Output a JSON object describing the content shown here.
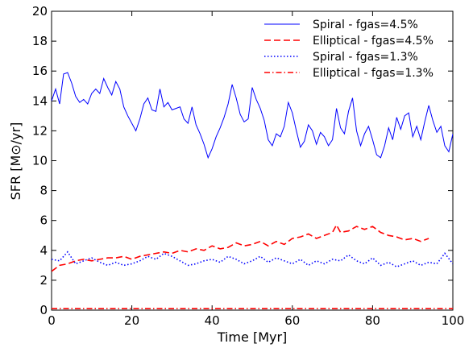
{
  "chart_data": {
    "type": "line",
    "title": "",
    "xlabel": "Time [Myr]",
    "ylabel": "SFR [M⊙/yr]",
    "xlim": [
      0,
      100
    ],
    "ylim": [
      0,
      20
    ],
    "xticks": [
      "0",
      "20",
      "40",
      "60",
      "80",
      "100"
    ],
    "yticks": [
      "0",
      "2",
      "4",
      "6",
      "8",
      "10",
      "12",
      "14",
      "16",
      "18",
      "20"
    ],
    "grid": false,
    "legend_position": "top-right",
    "series": [
      {
        "name": "Spiral - fgas=4.5%",
        "color": "#0000ff",
        "style": "solid",
        "x": [
          0,
          1,
          2,
          3,
          4,
          5,
          6,
          7,
          8,
          9,
          10,
          11,
          12,
          13,
          14,
          15,
          16,
          17,
          18,
          19,
          20,
          21,
          22,
          23,
          24,
          25,
          26,
          27,
          28,
          29,
          30,
          31,
          32,
          33,
          34,
          35,
          36,
          37,
          38,
          39,
          40,
          41,
          42,
          43,
          44,
          45,
          46,
          47,
          48,
          49,
          50,
          51,
          52,
          53,
          54,
          55,
          56,
          57,
          58,
          59,
          60,
          61,
          62,
          63,
          64,
          65,
          66,
          67,
          68,
          69,
          70,
          71,
          72,
          73,
          74,
          75,
          76,
          77,
          78,
          79,
          80,
          81,
          82,
          83,
          84,
          85,
          86,
          87,
          88,
          89,
          90,
          91,
          92,
          93,
          94,
          95,
          96,
          97,
          98,
          99,
          100
        ],
        "y": [
          14.0,
          14.8,
          13.8,
          15.8,
          15.9,
          15.2,
          14.3,
          13.9,
          14.1,
          13.8,
          14.5,
          14.8,
          14.5,
          15.5,
          14.9,
          14.4,
          15.3,
          14.8,
          13.6,
          13.0,
          12.5,
          12.0,
          12.8,
          13.8,
          14.2,
          13.4,
          13.3,
          14.8,
          13.6,
          13.9,
          13.4,
          13.5,
          13.6,
          12.8,
          12.5,
          13.6,
          12.4,
          11.8,
          11.1,
          10.2,
          10.8,
          11.6,
          12.2,
          12.9,
          13.8,
          15.1,
          14.2,
          13.1,
          12.6,
          12.8,
          14.9,
          14.1,
          13.5,
          12.7,
          11.4,
          11.0,
          11.8,
          11.6,
          12.3,
          13.9,
          13.2,
          12.0,
          10.9,
          11.3,
          12.4,
          12.0,
          11.1,
          11.9,
          11.6,
          11.0,
          11.4,
          13.5,
          12.2,
          11.8,
          13.3,
          14.2,
          12.0,
          11.0,
          11.8,
          12.3,
          11.4,
          10.4,
          10.2,
          11.0,
          12.2,
          11.4,
          12.9,
          12.1,
          13.0,
          13.2,
          11.6,
          12.3,
          11.4,
          12.6,
          13.7,
          12.7,
          11.9,
          12.3,
          11.0,
          10.6,
          11.8
        ]
      },
      {
        "name": "Elliptical - fgas=4.5%",
        "color": "#ff0000",
        "style": "dashed",
        "x": [
          0,
          2,
          4,
          6,
          8,
          10,
          12,
          14,
          16,
          18,
          20,
          22,
          24,
          26,
          28,
          30,
          32,
          34,
          36,
          38,
          40,
          42,
          44,
          46,
          48,
          50,
          52,
          54,
          56,
          58,
          60,
          62,
          64,
          66,
          68,
          70,
          71,
          72,
          74,
          76,
          78,
          80,
          82,
          84,
          86,
          88,
          90,
          92,
          94
        ],
        "y": [
          2.6,
          3.0,
          3.1,
          3.3,
          3.4,
          3.3,
          3.4,
          3.5,
          3.5,
          3.6,
          3.4,
          3.6,
          3.7,
          3.8,
          3.9,
          3.8,
          4.0,
          3.9,
          4.1,
          4.0,
          4.3,
          4.1,
          4.2,
          4.5,
          4.3,
          4.4,
          4.6,
          4.3,
          4.6,
          4.4,
          4.8,
          4.9,
          5.1,
          4.8,
          5.0,
          5.2,
          5.7,
          5.2,
          5.3,
          5.6,
          5.4,
          5.6,
          5.2,
          5.0,
          4.9,
          4.7,
          4.8,
          4.6,
          4.8
        ]
      },
      {
        "name": "Spiral - fgas=1.3%",
        "color": "#0000ff",
        "style": "dotted",
        "x": [
          0,
          2,
          4,
          5,
          6,
          8,
          10,
          12,
          14,
          16,
          18,
          20,
          22,
          24,
          26,
          28,
          30,
          32,
          34,
          36,
          38,
          40,
          42,
          44,
          46,
          48,
          50,
          52,
          54,
          56,
          58,
          60,
          62,
          64,
          66,
          68,
          70,
          72,
          74,
          76,
          78,
          80,
          82,
          84,
          86,
          88,
          90,
          92,
          94,
          96,
          98,
          100
        ],
        "y": [
          3.4,
          3.3,
          3.9,
          3.5,
          3.1,
          3.3,
          3.5,
          3.2,
          3.0,
          3.2,
          3.0,
          3.1,
          3.3,
          3.6,
          3.4,
          3.8,
          3.6,
          3.3,
          3.0,
          3.1,
          3.3,
          3.4,
          3.2,
          3.6,
          3.4,
          3.1,
          3.3,
          3.6,
          3.2,
          3.5,
          3.3,
          3.1,
          3.4,
          3.0,
          3.3,
          3.1,
          3.4,
          3.3,
          3.7,
          3.3,
          3.1,
          3.5,
          3.0,
          3.2,
          2.9,
          3.1,
          3.3,
          3.0,
          3.2,
          3.1,
          3.8,
          3.1
        ]
      },
      {
        "name": "Elliptical - fgas=1.3%",
        "color": "#ff0000",
        "style": "dashdot",
        "x": [
          0,
          100
        ],
        "y": [
          0.1,
          0.1
        ]
      }
    ]
  }
}
